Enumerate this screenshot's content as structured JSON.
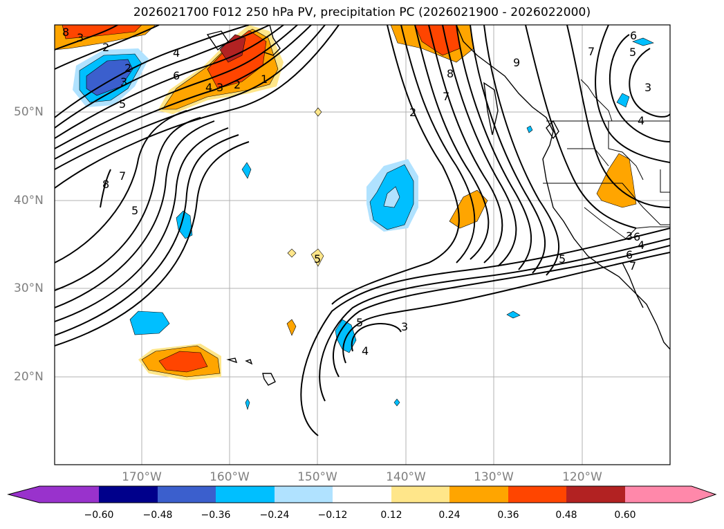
{
  "title": "2026021700 F012 250 hPa PV, precipitation PC (2026021900 - 2026022000)",
  "map": {
    "lat_labels": [
      "50°N",
      "40°N",
      "30°N",
      "20°N"
    ],
    "lon_labels": [
      "170°W",
      "160°W",
      "150°W",
      "140°W",
      "130°W",
      "120°W"
    ],
    "pv_contour_labels": [
      "3",
      "2",
      "4",
      "3",
      "5",
      "6",
      "2",
      "4",
      "3",
      "2",
      "1",
      "7",
      "8",
      "5",
      "2",
      "7",
      "8",
      "9",
      "6",
      "5",
      "7",
      "3",
      "4",
      "5",
      "5",
      "5",
      "3",
      "4",
      "3",
      "6",
      "4",
      "7",
      "6",
      "8"
    ]
  },
  "colorbar": {
    "ticks": [
      "−0.60",
      "−0.48",
      "−0.36",
      "−0.24",
      "−0.12",
      "0.12",
      "0.24",
      "0.36",
      "0.48",
      "0.60"
    ],
    "colors": [
      "#9932cc",
      "#00008b",
      "#3b5fcd",
      "#00bfff",
      "#b0e2ff",
      "#ffffff",
      "#ffe68a",
      "#ffa500",
      "#ff4500",
      "#b22222",
      "#ff88aa"
    ]
  }
}
